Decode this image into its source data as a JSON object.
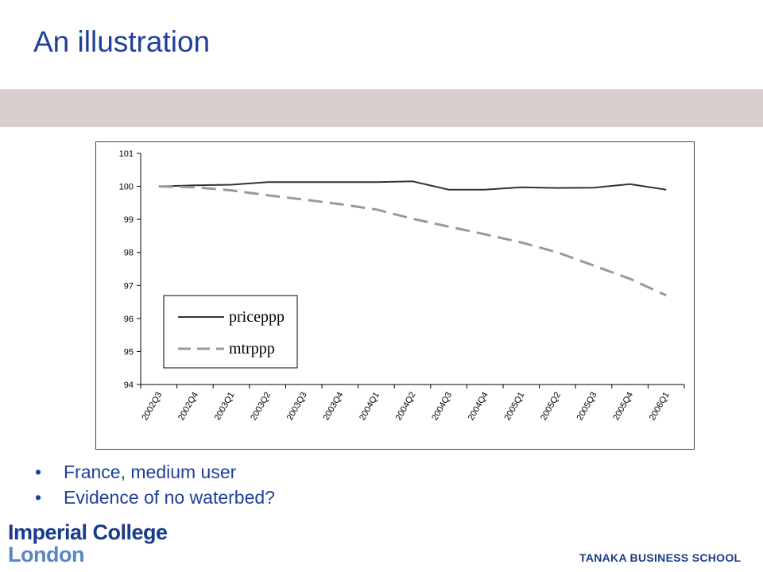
{
  "slide": {
    "title": "An illustration",
    "bullets": [
      "France, medium user",
      "Evidence of no waterbed?"
    ],
    "bullet_glyph": "•",
    "logo_line1": "Imperial College",
    "logo_line2": "London",
    "school": "TANAKA BUSINESS SCHOOL"
  },
  "colors": {
    "title": "#1f3f99",
    "band": "#d7cfcb",
    "series_solid": "#333333",
    "series_dashed": "#999999"
  },
  "chart_data": {
    "type": "line",
    "title": "",
    "xlabel": "",
    "ylabel": "",
    "ylim": [
      94,
      101
    ],
    "yticks": [
      94,
      95,
      96,
      97,
      98,
      99,
      100,
      101
    ],
    "grid": false,
    "legend_position": "bottom-left",
    "categories": [
      "2002Q3",
      "2002Q4",
      "2003Q1",
      "2003Q2",
      "2003Q3",
      "2003Q4",
      "2004Q1",
      "2004Q2",
      "2004Q3",
      "2004Q4",
      "2005Q1",
      "2005Q2",
      "2005Q3",
      "2005Q4",
      "2006Q1"
    ],
    "x": [
      "2002Q3",
      "2002Q4",
      "2003Q1",
      "2003Q2",
      "2003Q3",
      "2003Q4",
      "2004Q1",
      "2004Q2",
      "2004Q3",
      "2004Q4",
      "2005Q1",
      "2005Q2",
      "2005Q3",
      "2005Q4",
      "2006Q1"
    ],
    "series": [
      {
        "name": "priceppp",
        "style": "solid",
        "color": "#333333",
        "values": [
          100.0,
          100.03,
          100.05,
          100.13,
          100.13,
          100.13,
          100.13,
          100.15,
          99.9,
          99.9,
          99.97,
          99.95,
          99.96,
          100.07,
          99.9
        ]
      },
      {
        "name": "mtrppp",
        "style": "dashed",
        "color": "#999999",
        "values": [
          100.0,
          99.97,
          99.88,
          99.73,
          99.6,
          99.46,
          99.3,
          99.02,
          98.78,
          98.55,
          98.3,
          98.0,
          97.6,
          97.2,
          96.7
        ]
      }
    ]
  }
}
